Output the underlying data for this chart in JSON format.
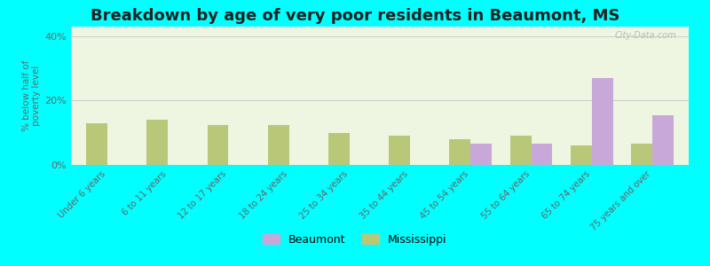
{
  "title": "Breakdown by age of very poor residents in Beaumont, MS",
  "categories": [
    "Under 6 years",
    "6 to 11 years",
    "12 to 17 years",
    "18 to 24 years",
    "25 to 34 years",
    "35 to 44 years",
    "45 to 54 years",
    "55 to 64 years",
    "65 to 74 years",
    "75 years and over"
  ],
  "beaumont_values": [
    0,
    0,
    0,
    0,
    0,
    0,
    6.5,
    6.5,
    27,
    15.5
  ],
  "mississippi_values": [
    13,
    14,
    12.5,
    12.5,
    10,
    9,
    8,
    9,
    6,
    6.5
  ],
  "beaumont_color": "#c8a8d8",
  "mississippi_color": "#b8c878",
  "ylim": [
    0,
    43
  ],
  "ytick_vals": [
    0,
    20,
    40
  ],
  "ytick_labels": [
    "0%",
    "20%",
    "40%"
  ],
  "ylabel": "% below half of\npoverty level",
  "background_color": "#00ffff",
  "plot_bg_color": "#eef5e0",
  "bar_width": 0.35,
  "title_fontsize": 13,
  "grid_color": "#cccccc",
  "watermark": "City-Data.com"
}
